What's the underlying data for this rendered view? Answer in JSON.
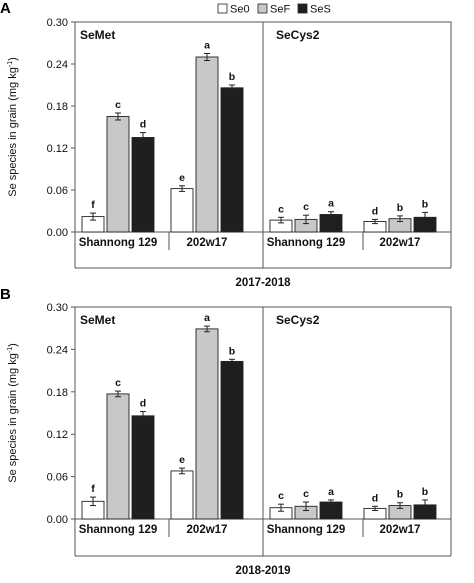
{
  "legend": {
    "placement": "top-right",
    "items": [
      {
        "label": "Se0",
        "color": "#ffffff"
      },
      {
        "label": "SeF",
        "color": "#c8c8c8"
      },
      {
        "label": "SeS",
        "color": "#1f1f1f"
      }
    ]
  },
  "chart_data": [
    {
      "type": "bar",
      "panel_label": "A",
      "ylabel_parts": [
        "Se species in grain (mg kg",
        "-1",
        ")"
      ],
      "ylim": [
        0,
        0.3
      ],
      "yticks": [
        "0.00",
        "0.06",
        "0.12",
        "0.18",
        "0.24",
        "0.30"
      ],
      "grid": false,
      "subpanels": [
        "SeMet",
        "SeCys2"
      ],
      "categories": [
        "Shannong 129",
        "202w17",
        "Shannong 129",
        "202w17"
      ],
      "xlabel": "2017-2018",
      "series": [
        {
          "name": "Se0",
          "values": [
            0.022,
            0.062,
            0.017,
            0.015
          ],
          "errors": [
            0.005,
            0.004,
            0.004,
            0.003
          ],
          "letters": [
            "f",
            "e",
            "c",
            "d"
          ]
        },
        {
          "name": "SeF",
          "values": [
            0.165,
            0.25,
            0.018,
            0.019
          ],
          "errors": [
            0.005,
            0.005,
            0.006,
            0.004
          ],
          "letters": [
            "c",
            "a",
            "c",
            "b"
          ]
        },
        {
          "name": "SeS",
          "values": [
            0.135,
            0.206,
            0.025,
            0.021
          ],
          "errors": [
            0.007,
            0.004,
            0.004,
            0.007
          ],
          "letters": [
            "d",
            "b",
            "a",
            "b"
          ]
        }
      ]
    },
    {
      "type": "bar",
      "panel_label": "B",
      "ylabel_parts": [
        "Se species in grain (mg kg",
        "-1",
        ")"
      ],
      "ylim": [
        0,
        0.3
      ],
      "yticks": [
        "0.00",
        "0.06",
        "0.12",
        "0.18",
        "0.24",
        "0.30"
      ],
      "grid": false,
      "subpanels": [
        "SeMet",
        "SeCys2"
      ],
      "categories": [
        "Shannong 129",
        "202w17",
        "Shannong 129",
        "202w17"
      ],
      "xlabel": "2018-2019",
      "series": [
        {
          "name": "Se0",
          "values": [
            0.025,
            0.068,
            0.016,
            0.015
          ],
          "errors": [
            0.006,
            0.004,
            0.005,
            0.003
          ],
          "letters": [
            "f",
            "e",
            "c",
            "d"
          ]
        },
        {
          "name": "SeF",
          "values": [
            0.177,
            0.269,
            0.018,
            0.019
          ],
          "errors": [
            0.004,
            0.004,
            0.006,
            0.004
          ],
          "letters": [
            "c",
            "a",
            "c",
            "b"
          ]
        },
        {
          "name": "SeS",
          "values": [
            0.146,
            0.223,
            0.024,
            0.02
          ],
          "errors": [
            0.006,
            0.003,
            0.003,
            0.007
          ],
          "letters": [
            "d",
            "b",
            "a",
            "b"
          ]
        }
      ]
    }
  ]
}
